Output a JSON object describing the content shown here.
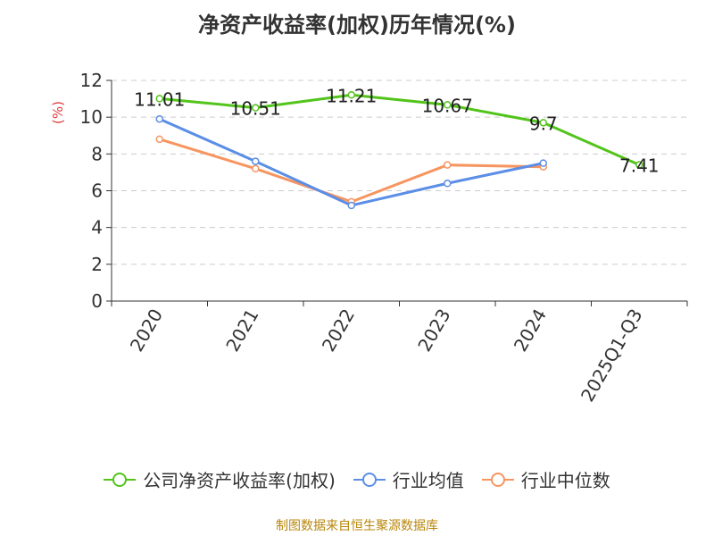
{
  "title": "净资产收益率(加权)历年情况(%)",
  "source": "制图数据来自恒生聚源数据库",
  "chart_data": {
    "type": "line",
    "title": "净资产收益率(加权)历年情况(%)",
    "ylabel": "(%)",
    "xlabel": "",
    "categories": [
      "2020",
      "2021",
      "2022",
      "2023",
      "2024",
      "2025Q1-Q3"
    ],
    "ylim": [
      0,
      12
    ],
    "yticks": [
      0,
      2,
      4,
      6,
      8,
      10,
      12
    ],
    "grid": true,
    "legend_position": "bottom",
    "series": [
      {
        "name": "公司净资产收益率(加权)",
        "color": "#52c41a",
        "values": [
          11.01,
          10.51,
          11.21,
          10.67,
          9.7,
          7.41
        ],
        "labels": [
          "11.01",
          "10.51",
          "11.21",
          "10.67",
          "9.7",
          "7.41"
        ]
      },
      {
        "name": "行业均值",
        "color": "#5b8ee6",
        "values": [
          9.9,
          7.6,
          5.2,
          6.4,
          7.5,
          null
        ],
        "labels": []
      },
      {
        "name": "行业中位数",
        "color": "#f79560",
        "values": [
          8.8,
          7.2,
          5.4,
          7.4,
          7.3,
          null
        ],
        "labels": []
      }
    ]
  }
}
